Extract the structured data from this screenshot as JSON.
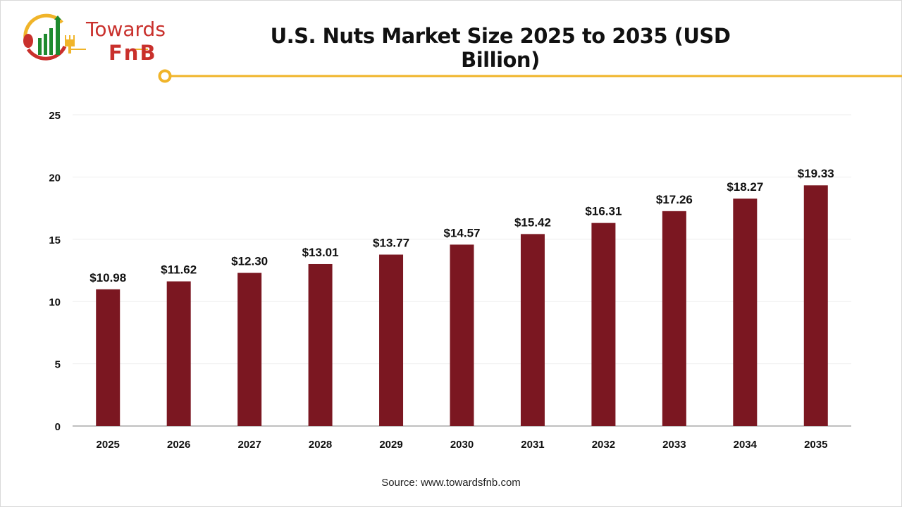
{
  "logo": {
    "line1": "Towards",
    "line2": "FnB"
  },
  "colors": {
    "bar": "#7b1721",
    "accent": "#f0b429",
    "logo_red": "#c9302c",
    "logo_green": "#1e8a2e"
  },
  "source": "Source: www.towardsfnb.com",
  "chart_data": {
    "type": "bar",
    "title": "U.S. Nuts Market Size 2025 to 2035 (USD Billion)",
    "xlabel": "",
    "ylabel": "",
    "categories": [
      "2025",
      "2026",
      "2027",
      "2028",
      "2029",
      "2030",
      "2031",
      "2032",
      "2033",
      "2034",
      "2035"
    ],
    "values": [
      10.98,
      11.62,
      12.3,
      13.01,
      13.77,
      14.57,
      15.42,
      16.31,
      17.26,
      18.27,
      19.33
    ],
    "data_labels": [
      "$10.98",
      "$11.62",
      "$12.30",
      "$13.01",
      "$13.77",
      "$14.57",
      "$15.42",
      "$16.31",
      "$17.26",
      "$18.27",
      "$19.33"
    ],
    "ylim": [
      0,
      25
    ],
    "yticks": [
      0,
      5,
      10,
      15,
      20,
      25
    ],
    "grid": true,
    "legend": "none"
  }
}
